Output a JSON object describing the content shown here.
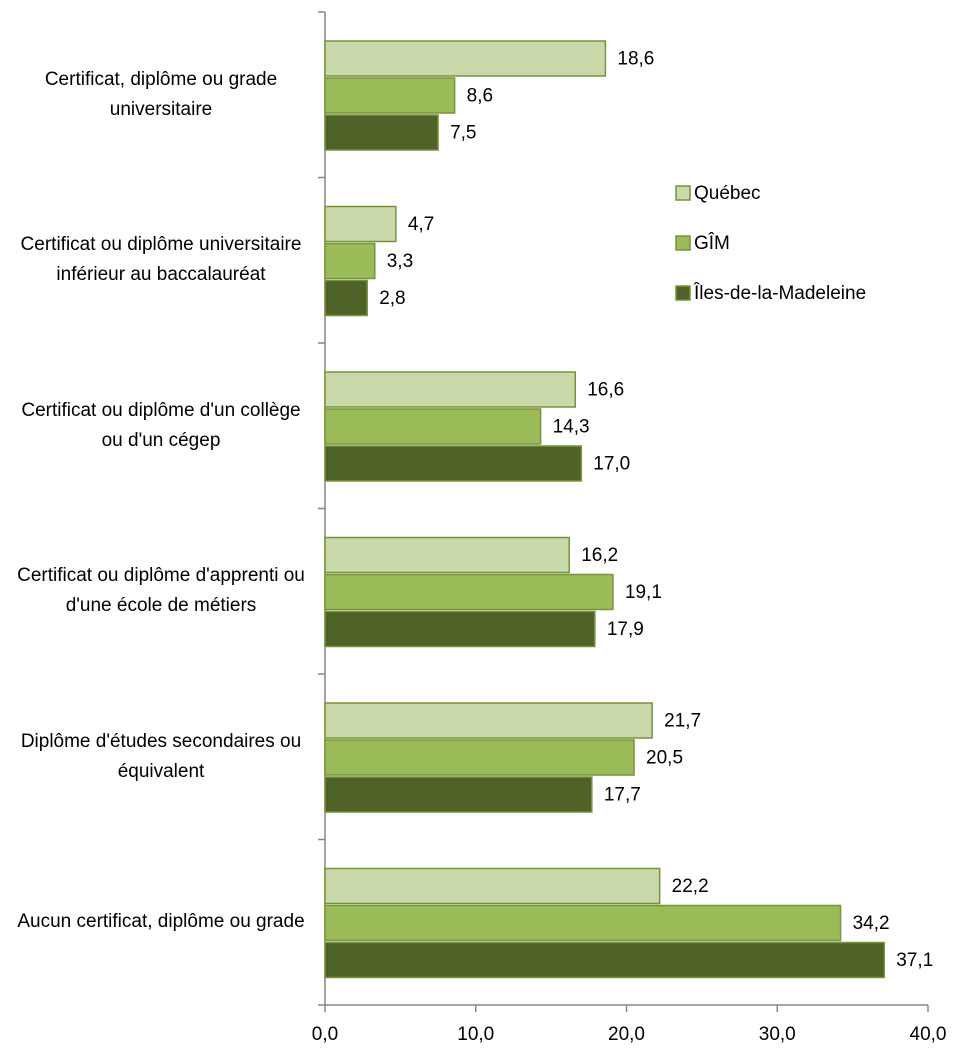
{
  "chart_data": {
    "type": "hbar",
    "categories": [
      "Certificat, diplôme ou grade universitaire",
      "Certificat ou diplôme universitaire inférieur au baccalauréat",
      "Certificat ou diplôme d'un collège ou d'un cégep",
      "Certificat ou diplôme d'apprenti ou d'une école de métiers",
      "Diplôme d'études secondaires ou équivalent",
      "Aucun certificat, diplôme ou grade"
    ],
    "series": [
      {
        "name": "Québec",
        "color": "#c9d9aa",
        "values": [
          18.6,
          4.7,
          16.6,
          16.2,
          21.7,
          22.2
        ],
        "value_labels": [
          "18,6",
          "4,7",
          "16,6",
          "16,2",
          "21,7",
          "22,2"
        ]
      },
      {
        "name": "GÎM",
        "color": "#9bbb59",
        "values": [
          8.6,
          3.3,
          14.3,
          19.1,
          20.5,
          34.2
        ],
        "value_labels": [
          "8,6",
          "3,3",
          "14,3",
          "19,1",
          "20,5",
          "34,2"
        ]
      },
      {
        "name": "Îles-de-la-Madeleine",
        "color": "#4f6228",
        "values": [
          7.5,
          2.8,
          17.0,
          17.9,
          17.7,
          37.1
        ],
        "value_labels": [
          "7,5",
          "2,8",
          "17,0",
          "17,9",
          "17,7",
          "37,1"
        ]
      }
    ],
    "xlim": [
      0,
      40
    ],
    "xticks": [
      {
        "value": 0,
        "label": "0,0"
      },
      {
        "value": 10,
        "label": "10,0"
      },
      {
        "value": 20,
        "label": "20,0"
      },
      {
        "value": 30,
        "label": "30,0"
      },
      {
        "value": 40,
        "label": "40,0"
      }
    ],
    "legend": "right"
  }
}
